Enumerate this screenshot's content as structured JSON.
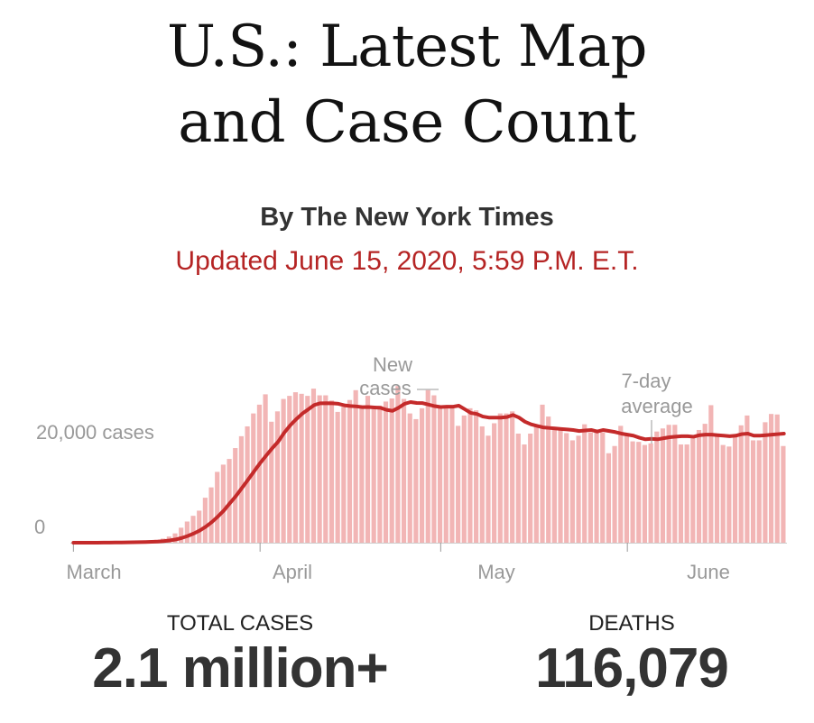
{
  "header": {
    "title_line1": "U.S.: Latest Map",
    "title_line2": "and Case Count",
    "byline": "By The New York Times",
    "updated": "Updated June 15, 2020, 5:59 P.M. E.T."
  },
  "colors": {
    "bar": "#f2b5b5",
    "line": "#c42a2a",
    "updated_text": "#b52424",
    "axis_text": "#999999"
  },
  "chart_data": {
    "type": "bar",
    "start_date": "2020-03-01",
    "xlabel": "",
    "ylabel": "",
    "ylim": [
      0,
      34000
    ],
    "y_tick_labels": [
      "0",
      "20,000 cases"
    ],
    "y_ticks": [
      0,
      20000
    ],
    "x_tick_labels": [
      "March",
      "April",
      "May",
      "June"
    ],
    "x_ticks": [
      "2020-03-01",
      "2020-04-01",
      "2020-05-01",
      "2020-06-01"
    ],
    "grid": false,
    "annotations": {
      "bars": "New cases",
      "line": "7-day average"
    },
    "series": [
      {
        "name": "New cases",
        "kind": "bar",
        "values": [
          0,
          0,
          10,
          15,
          25,
          35,
          60,
          100,
          130,
          160,
          200,
          250,
          350,
          470,
          580,
          800,
          1200,
          1800,
          2900,
          4100,
          5200,
          6200,
          8700,
          10700,
          13700,
          15100,
          16200,
          18300,
          20600,
          22500,
          25000,
          26700,
          28700,
          23400,
          25400,
          27800,
          28400,
          29100,
          28800,
          28400,
          29800,
          28500,
          28500,
          27500,
          25300,
          26300,
          27600,
          29500,
          26000,
          28400,
          26300,
          26500,
          27300,
          27900,
          30300,
          27800,
          25000,
          23900,
          26000,
          29500,
          28500,
          26000,
          26400,
          26000,
          22600,
          24600,
          26000,
          25600,
          22500,
          20700,
          23100,
          25000,
          25000,
          25400,
          21100,
          19000,
          21100,
          22700,
          26700,
          24400,
          22300,
          21800,
          21200,
          19800,
          20700,
          22900,
          21300,
          21900,
          21300,
          17300,
          18700,
          22600,
          20700,
          19600,
          19500,
          18900,
          19200,
          21500,
          22100,
          22800,
          22800,
          19000,
          19000,
          20200,
          21800,
          23000,
          26600,
          20600,
          18900,
          18600,
          20600,
          22700,
          24600,
          19800,
          19800,
          23300,
          24900,
          24800,
          18700
        ]
      },
      {
        "name": "7-day average",
        "kind": "line",
        "values": [
          0,
          0,
          3,
          6,
          10,
          15,
          24,
          37,
          51,
          66,
          84,
          106,
          135,
          174,
          219,
          301,
          437,
          630,
          915,
          1307,
          1788,
          2357,
          3100,
          4001,
          5071,
          6243,
          7657,
          9029,
          10600,
          12181,
          13790,
          15382,
          16821,
          18243,
          19526,
          21244,
          22686,
          23889,
          24947,
          25779,
          26631,
          26962,
          26988,
          26969,
          26869,
          26571,
          26429,
          26361,
          26211,
          26243,
          26157,
          26093,
          25700,
          25500,
          26100,
          26857,
          27200,
          27029,
          27000,
          26700,
          26414,
          26243,
          26300,
          26300,
          26500,
          25813,
          25100,
          24900,
          24400,
          24200,
          24200,
          24200,
          24300,
          24700,
          24200,
          23400,
          22900,
          22600,
          22300,
          22200,
          22100,
          22000,
          21900,
          21800,
          21600,
          21700,
          21800,
          21500,
          21800,
          21600,
          21400,
          21100,
          20900,
          20700,
          20300,
          20000,
          20100,
          20000,
          20200,
          20400,
          20500,
          20600,
          20600,
          20500,
          20800,
          20900,
          20900,
          20800,
          20700,
          20600,
          20700,
          21000,
          21100,
          20700,
          20700,
          20800,
          20900,
          21000,
          21100
        ]
      }
    ]
  },
  "stats": {
    "total_cases_label": "TOTAL CASES",
    "total_cases_value": "2.1 million+",
    "deaths_label": "DEATHS",
    "deaths_value": "116,079"
  }
}
